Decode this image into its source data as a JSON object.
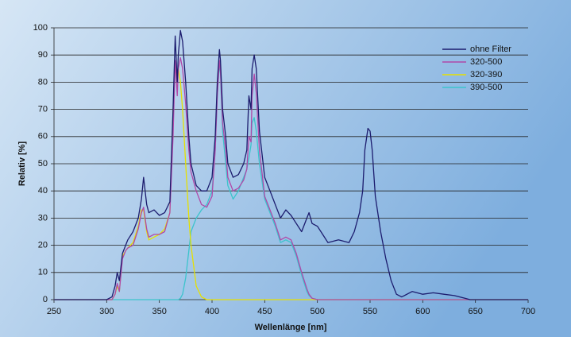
{
  "chart_data": {
    "type": "line",
    "xlabel": "Wellenlänge [nm]",
    "ylabel": "Relativ [%]",
    "x": [
      250,
      300,
      305,
      308,
      310,
      312,
      315,
      318,
      320,
      325,
      330,
      333,
      335,
      338,
      340,
      345,
      350,
      355,
      360,
      363,
      365,
      367,
      368,
      370,
      372,
      375,
      378,
      380,
      385,
      390,
      395,
      400,
      403,
      405,
      407,
      408,
      410,
      413,
      415,
      420,
      425,
      430,
      433,
      435,
      437,
      438,
      440,
      442,
      445,
      450,
      455,
      460,
      465,
      470,
      475,
      480,
      485,
      490,
      492,
      495,
      500,
      505,
      510,
      520,
      530,
      535,
      540,
      543,
      545,
      548,
      550,
      552,
      555,
      560,
      565,
      570,
      575,
      580,
      590,
      600,
      610,
      620,
      630,
      640,
      645,
      650,
      700
    ],
    "series": [
      {
        "name": "ohne Filter",
        "color": "#1c1c6e",
        "values": [
          0,
          0,
          1,
          5,
          10,
          7,
          17,
          20,
          22,
          25,
          30,
          37,
          45,
          35,
          32,
          33,
          31,
          32,
          36,
          70,
          97,
          80,
          90,
          99,
          95,
          80,
          60,
          50,
          42,
          40,
          40,
          45,
          60,
          80,
          92,
          88,
          70,
          60,
          50,
          45,
          46,
          50,
          55,
          75,
          70,
          85,
          90,
          85,
          62,
          45,
          40,
          35,
          30,
          33,
          31,
          28,
          25,
          30,
          32,
          28,
          27,
          24,
          21,
          22,
          21,
          25,
          32,
          40,
          55,
          63,
          62,
          55,
          38,
          25,
          15,
          7,
          2,
          1,
          3,
          2,
          2.5,
          2,
          1.5,
          0.5,
          0,
          0,
          0
        ]
      },
      {
        "name": "320-500",
        "color": "#b048a8",
        "values": [
          0,
          0,
          0,
          2,
          6,
          3,
          15,
          18,
          19,
          20,
          26,
          32,
          34,
          26,
          23,
          24,
          24,
          25,
          32,
          60,
          88,
          75,
          85,
          89,
          85,
          72,
          55,
          47,
          40,
          35,
          34,
          38,
          55,
          75,
          88,
          84,
          65,
          55,
          45,
          40,
          41,
          44,
          48,
          60,
          58,
          75,
          83,
          76,
          55,
          38,
          33,
          28,
          22,
          23,
          22,
          17,
          10,
          4,
          2,
          0.5,
          0,
          0,
          0,
          0,
          0,
          0,
          0,
          0,
          0,
          0,
          0,
          0,
          0,
          0,
          0,
          0,
          0,
          0,
          0,
          0,
          0,
          0,
          0,
          0,
          0,
          0,
          0
        ]
      },
      {
        "name": "320-390",
        "color": "#e6e000",
        "values": [
          0,
          0,
          0,
          2,
          5,
          3,
          16,
          18,
          19,
          21,
          27,
          33,
          33,
          25,
          22,
          23,
          24,
          26,
          32,
          70,
          87,
          80,
          85,
          80,
          70,
          50,
          30,
          20,
          5,
          1,
          0,
          0,
          0,
          0,
          0,
          0,
          0,
          0,
          0,
          0,
          0,
          0,
          0,
          0,
          0,
          0,
          0,
          0,
          0,
          0,
          0,
          0,
          0,
          0,
          0,
          0,
          0,
          0,
          0,
          0,
          0,
          0,
          0,
          0,
          0,
          0,
          0,
          0,
          0,
          0,
          0,
          0,
          0,
          0,
          0,
          0,
          0,
          0,
          0,
          0,
          0,
          0,
          0,
          0,
          0,
          0,
          0
        ]
      },
      {
        "name": "390-500",
        "color": "#3cc4cc",
        "values": [
          0,
          0,
          0,
          0,
          0,
          0,
          0,
          0,
          0,
          0,
          0,
          0,
          0,
          0,
          0,
          0,
          0,
          0,
          0,
          0,
          0,
          0,
          0,
          0.5,
          2,
          8,
          18,
          25,
          30,
          33,
          35,
          40,
          55,
          75,
          87,
          83,
          62,
          50,
          42,
          37,
          40,
          45,
          48,
          52,
          57,
          65,
          67,
          62,
          50,
          37,
          32,
          27,
          21,
          22,
          21,
          16,
          9,
          3,
          1.5,
          0.5,
          0,
          0,
          0,
          0,
          0,
          0,
          0,
          0,
          0,
          0,
          0,
          0,
          0,
          0,
          0,
          0,
          0,
          0,
          0,
          0,
          0,
          0,
          0,
          0,
          0,
          0,
          0
        ]
      }
    ],
    "xlim": [
      250,
      700
    ],
    "xticks": [
      250,
      300,
      350,
      400,
      450,
      500,
      550,
      600,
      650,
      700
    ],
    "ylim": [
      0,
      100
    ],
    "yticks": [
      0,
      10,
      20,
      30,
      40,
      50,
      60,
      70,
      80,
      90,
      100
    ],
    "grid": true,
    "legend": "upper right"
  }
}
